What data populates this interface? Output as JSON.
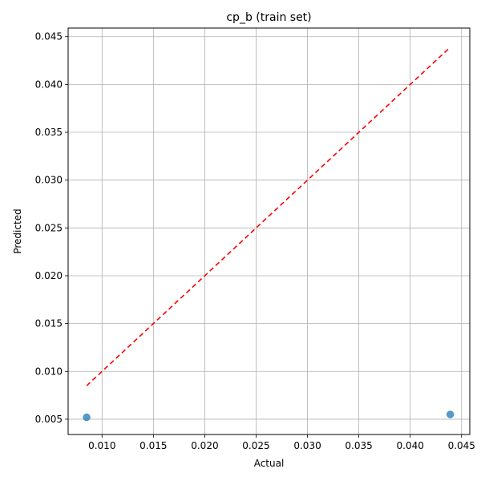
{
  "chart_data": {
    "type": "scatter",
    "title": "cp_b (train set)",
    "xlabel": "Actual",
    "ylabel": "Predicted",
    "xlim": [
      0.0067,
      0.0458
    ],
    "ylim": [
      0.0034,
      0.0459
    ],
    "xticks": [
      0.01,
      0.015,
      0.02,
      0.025,
      0.03,
      0.035,
      0.04,
      0.045
    ],
    "xtick_labels": [
      "0.010",
      "0.015",
      "0.020",
      "0.025",
      "0.030",
      "0.035",
      "0.040",
      "0.045"
    ],
    "yticks": [
      0.005,
      0.01,
      0.015,
      0.02,
      0.025,
      0.03,
      0.035,
      0.04,
      0.045
    ],
    "ytick_labels": [
      "0.005",
      "0.010",
      "0.015",
      "0.020",
      "0.025",
      "0.030",
      "0.035",
      "0.040",
      "0.045"
    ],
    "grid": true,
    "points": [
      {
        "x": 0.0085,
        "y": 0.0052
      },
      {
        "x": 0.0439,
        "y": 0.0055
      }
    ],
    "reference_line": {
      "x": [
        0.0085,
        0.0439
      ],
      "y": [
        0.0085,
        0.0439
      ]
    },
    "colors": {
      "points": "#1f77b4",
      "reference_line": "#ff0000",
      "grid": "#b0b0b0"
    }
  }
}
